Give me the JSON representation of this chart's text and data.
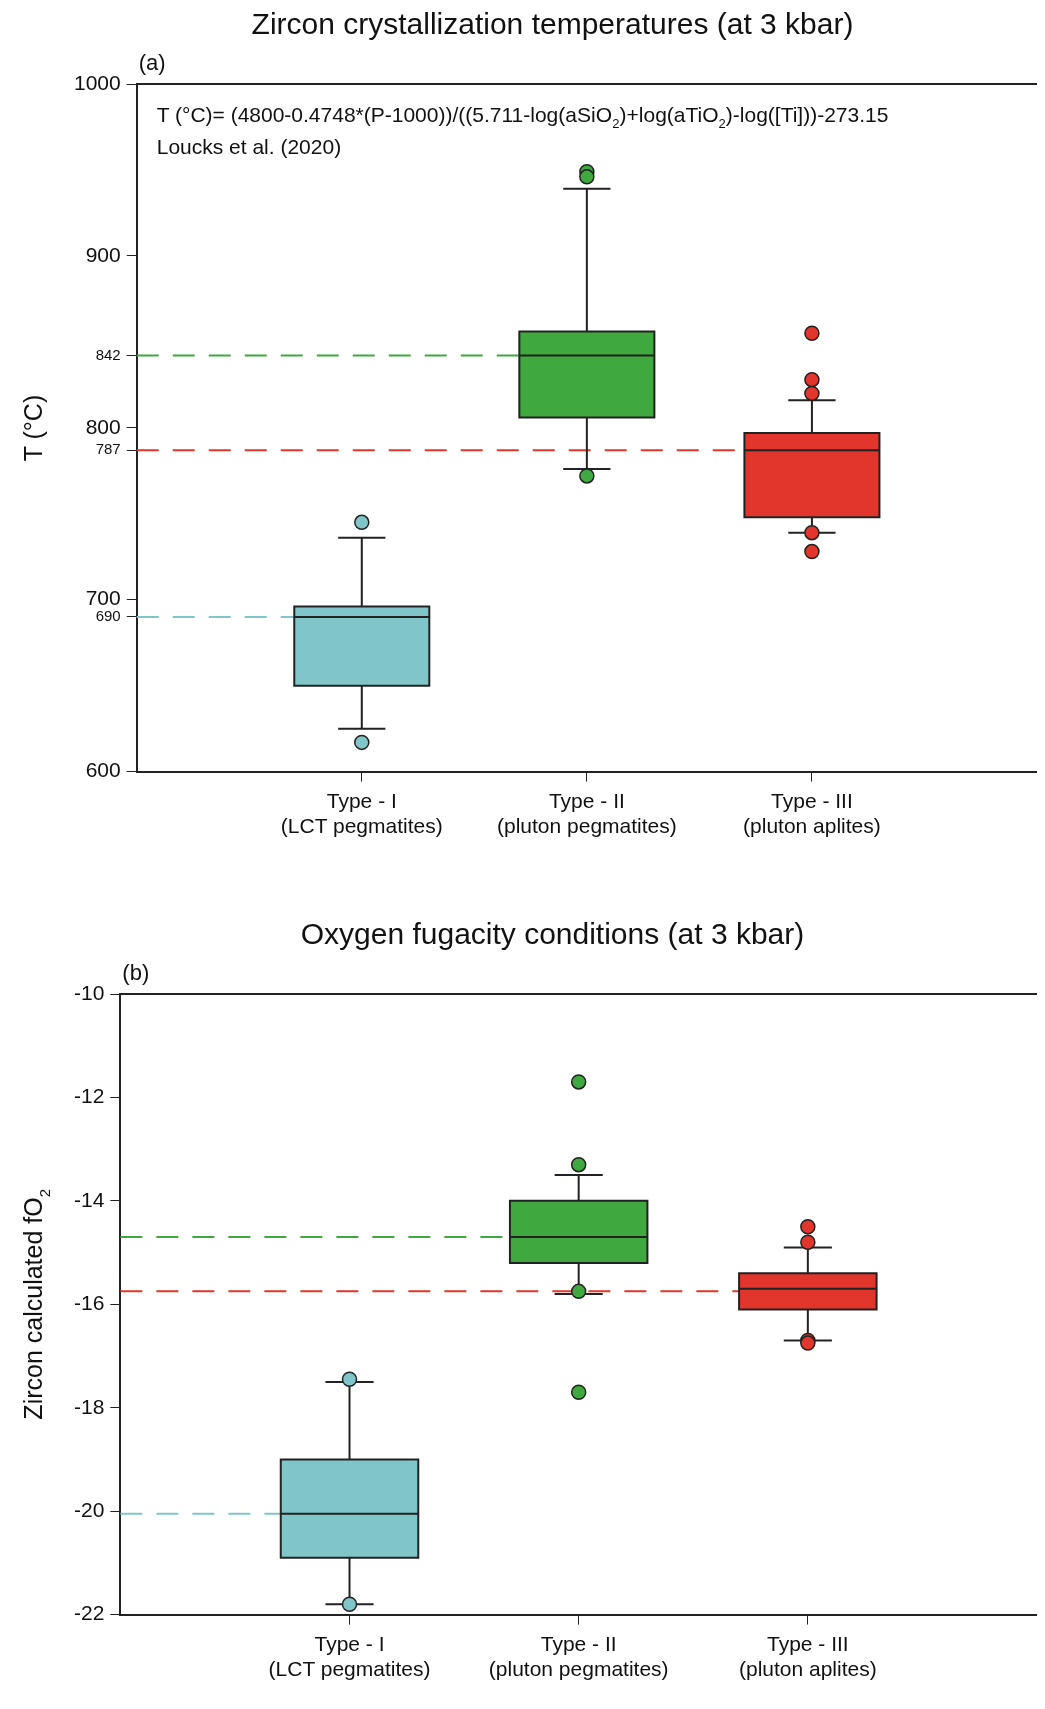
{
  "chart_data": [
    {
      "type": "box",
      "title": "Zircon crystallization temperatures (at 3 kbar)",
      "ylabel": "T (°C)",
      "categories": [
        "Type - I\n(LCT pegmatites)",
        "Type - II\n(pluton pegmatites)",
        "Type - III\n(pluton aplites)"
      ],
      "colors": [
        "#80c6c8",
        "#3fa83f",
        "#e2352b"
      ],
      "boxes": [
        {
          "low": 625,
          "q1": 650,
          "median": 690,
          "q3": 696,
          "high": 736,
          "outliers": [
            745,
            617
          ]
        },
        {
          "low": 776,
          "q1": 806,
          "median": 842,
          "q3": 856,
          "high": 939,
          "outliers": [
            949,
            946,
            772
          ]
        },
        {
          "low": 739,
          "q1": 748,
          "median": 787,
          "q3": 797,
          "high": 816,
          "outliers": [
            855,
            828,
            820,
            739,
            728
          ]
        }
      ],
      "ylim": [
        600,
        1000
      ],
      "yticks": [
        600,
        690,
        700,
        787,
        800,
        842,
        900,
        1000
      ],
      "grid": false,
      "legend": false,
      "ref_lines": [
        {
          "axis": "y",
          "value": 842,
          "color": "#3fa83f",
          "line_style": "dashed"
        },
        {
          "axis": "y",
          "value": 787,
          "color": "#e2352b",
          "line_style": "dashed"
        },
        {
          "axis": "y",
          "value": 690,
          "color": "#80c6c8",
          "line_style": "dashed"
        }
      ],
      "annotations": [
        "(a)",
        "T (°C)= (4800-0.4748*(P-1000))/((5.711-log(aSiO$_{2}$)+log(aTiO$_{2}$)-log([Ti]))-273.15",
        "Loucks et al. (2020)"
      ]
    },
    {
      "type": "box",
      "title": "Oxygen fugacity conditions (at 3 kbar)",
      "ylabel": "Zircon calculated fO$_{2}$",
      "categories": [
        "Type - I\n(LCT pegmatites)",
        "Type - II\n(pluton pegmatites)",
        "Type - III\n(pluton aplites)"
      ],
      "colors": [
        "#80c6c8",
        "#3fa83f",
        "#e2352b"
      ],
      "boxes": [
        {
          "low": -21.8,
          "q1": -20.9,
          "median": -20.05,
          "q3": -19,
          "high": -17.5,
          "outliers": [
            -17.45,
            -21.8
          ]
        },
        {
          "low": -15.8,
          "q1": -15.2,
          "median": -14.7,
          "q3": -14,
          "high": -13.5,
          "outliers": [
            -11.7,
            -13.3,
            -15.75,
            -17.7
          ]
        },
        {
          "low": -16.7,
          "q1": -16.1,
          "median": -15.7,
          "q3": -15.4,
          "high": -14.9,
          "outliers": [
            -14.5,
            -14.8,
            -16.7,
            -16.75
          ]
        }
      ],
      "ylim": [
        -22,
        -10
      ],
      "yticks": [
        -22,
        -20,
        -18,
        -16,
        -14,
        -12,
        -10
      ],
      "grid": false,
      "legend": false,
      "ref_lines": [
        {
          "axis": "y",
          "value": -14.7,
          "color": "#3fa83f",
          "line_style": "dashed"
        },
        {
          "axis": "y",
          "value": -15.75,
          "color": "#e2352b",
          "line_style": "dashed"
        },
        {
          "axis": "y",
          "value": -20.05,
          "color": "#80c6c8",
          "line_style": "dashed"
        }
      ],
      "annotations": [
        "(b)"
      ]
    }
  ]
}
